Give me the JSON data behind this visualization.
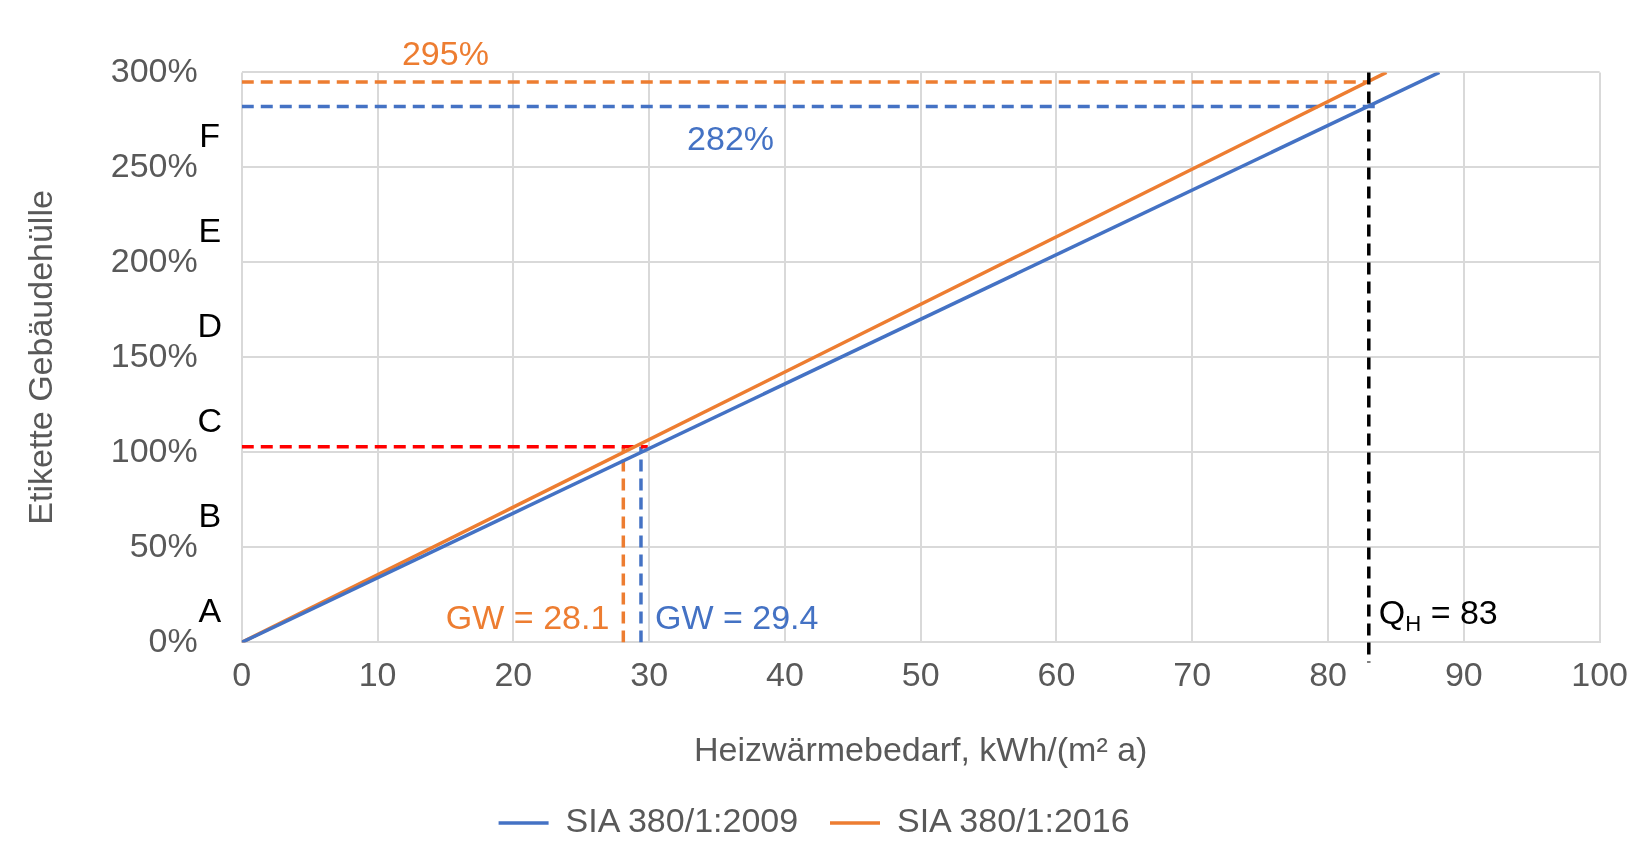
{
  "chart_data": {
    "type": "line",
    "xlabel": "Heizwärmebedarf, kWh/(m² a)",
    "ylabel": "Etikette Gebäudehülle",
    "xlim": [
      0,
      100
    ],
    "xticks": [
      0,
      10,
      20,
      30,
      40,
      50,
      60,
      70,
      80,
      90,
      100
    ],
    "ylim": [
      0,
      300
    ],
    "yticks": [
      {
        "value": 0,
        "label": "0%"
      },
      {
        "value": 50,
        "label": "50%"
      },
      {
        "value": 100,
        "label": "100%"
      },
      {
        "value": 150,
        "label": "150%"
      },
      {
        "value": 200,
        "label": "200%"
      },
      {
        "value": 250,
        "label": "250%"
      },
      {
        "value": 300,
        "label": "300%"
      }
    ],
    "grid": true,
    "legend": "bottom",
    "marker": "none",
    "line_style": "solid",
    "series": [
      {
        "name": "SIA 380/1:2009",
        "color": "#4472c4",
        "x": [
          0,
          88.2
        ],
        "values": [
          0,
          300
        ]
      },
      {
        "name": "SIA 380/1:2016",
        "color": "#ed7d31",
        "x": [
          0,
          84.3
        ],
        "values": [
          0,
          300
        ]
      },
      {
        "color": "#ed7d31",
        "x": [
          0,
          83
        ],
        "values": [
          295,
          295
        ],
        "line_style": "dashed"
      },
      {
        "color": "#4472c4",
        "x": [
          0,
          83.5
        ],
        "values": [
          282,
          282
        ],
        "line_style": "dashed"
      },
      {
        "color": "#ff0000",
        "x": [
          0,
          29.9
        ],
        "values": [
          103,
          103
        ],
        "line_style": "dashed"
      },
      {
        "color": "#ed7d31",
        "x": [
          28.1,
          28.1
        ],
        "values": [
          0,
          103
        ],
        "line_style": "dashed"
      },
      {
        "color": "#4472c4",
        "x": [
          29.4,
          29.4
        ],
        "values": [
          0,
          103
        ],
        "line_style": "dashed"
      }
    ],
    "ref_lines": [
      {
        "axis": "x",
        "value": 83,
        "label": "Q$_{H}$ = 83",
        "color": "#000000",
        "line_style": "dashed"
      }
    ],
    "annotations": [
      "A",
      "B",
      "C",
      "D",
      "E",
      "F",
      {
        "text": "295%",
        "x": 15,
        "y": 295
      },
      {
        "text": "282%",
        "x": 36,
        "y": 282
      },
      {
        "text": "GW = 28.1",
        "x": 28.1,
        "y": 12
      },
      {
        "text": "GW = 29.4",
        "x": 29.4,
        "y": 12
      }
    ]
  }
}
